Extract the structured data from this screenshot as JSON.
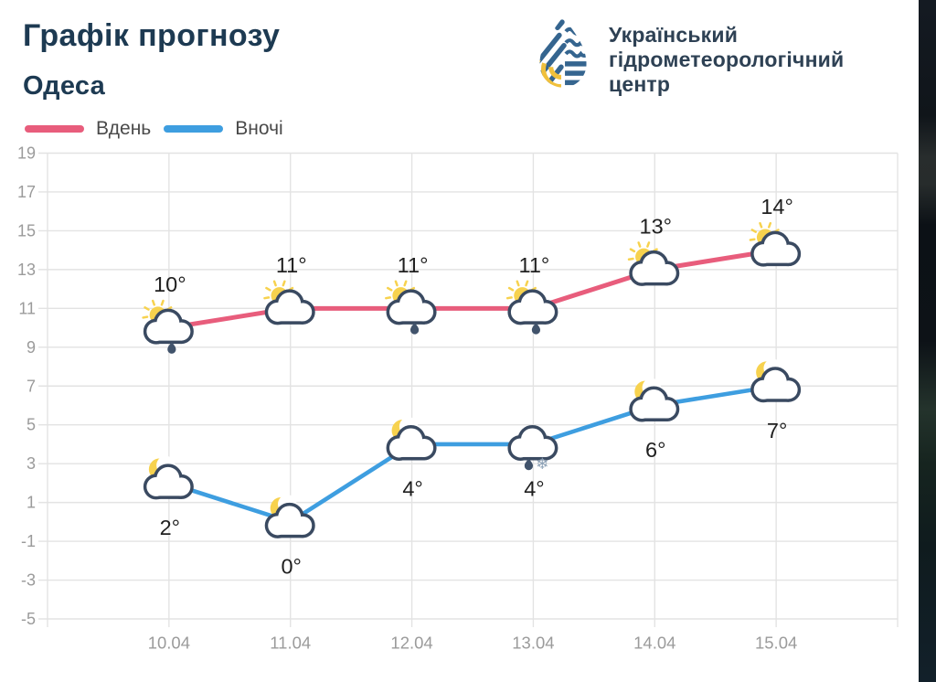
{
  "header": {
    "title": "Графік прогнозу",
    "city": "Одеса"
  },
  "logo": {
    "icon": "uhmc-drop-logo",
    "line1": "Український",
    "line2": "гідрометеорологічний",
    "line3": "центр"
  },
  "legend": {
    "day_label": "Вдень",
    "night_label": "Вночі"
  },
  "colors": {
    "day_line": "#e85d7c",
    "night_line": "#3e9ee0",
    "grid": "#e3e3e3",
    "axis_text": "#9b9b9b",
    "value_text": "#1f1f1f",
    "title_text": "#1d3a52",
    "logo_text": "#2e4154",
    "legend_text": "#4a4a4a",
    "logo_blue": "#35658f",
    "logo_yellow": "#f0c03c",
    "cloud_outline": "#3a4a61",
    "cloud_fill": "#ffffff",
    "sun_yellow": "#f7d24e",
    "rain_drop": "#41536b",
    "snowflake": "#8ba0b5",
    "edge_strip": "#0d1318"
  },
  "chart_data": {
    "type": "line",
    "categories": [
      "10.04",
      "11.04",
      "12.04",
      "13.04",
      "14.04",
      "15.04"
    ],
    "ylim": [
      -5,
      19
    ],
    "yticks": [
      19,
      17,
      15,
      13,
      11,
      9,
      7,
      5,
      3,
      1,
      -1,
      -3,
      -5
    ],
    "grid": true,
    "legend_position": "top-left",
    "title": "Графік прогнозу",
    "subtitle": "Одеса",
    "series": [
      {
        "name": "Вдень",
        "color": "#e85d7c",
        "values": [
          10,
          11,
          11,
          11,
          13,
          14
        ],
        "value_labels": [
          "10°",
          "11°",
          "11°",
          "11°",
          "13°",
          "14°"
        ],
        "label_position": "above",
        "icons": [
          "sun-cloud-rain",
          "sun-cloud",
          "sun-cloud-rain",
          "sun-cloud-rain",
          "sun-cloud",
          "sun-cloud"
        ]
      },
      {
        "name": "Вночі",
        "color": "#3e9ee0",
        "values": [
          2,
          0,
          4,
          4,
          6,
          7
        ],
        "value_labels": [
          "2°",
          "0°",
          "4°",
          "4°",
          "6°",
          "7°"
        ],
        "label_position": "below",
        "icons": [
          "moon-cloud",
          "moon-cloud",
          "moon-cloud",
          "cloud-rain-snow",
          "moon-cloud",
          "moon-cloud"
        ]
      }
    ]
  }
}
